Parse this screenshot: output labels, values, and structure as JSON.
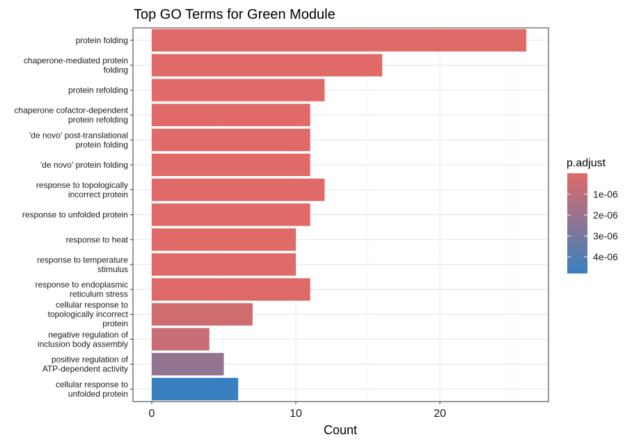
{
  "chart_data": {
    "type": "bar",
    "orientation": "horizontal",
    "title": "Top GO Terms for Green Module",
    "xlabel": "Count",
    "ylabel": "",
    "xlim": [
      0,
      27
    ],
    "x_ticks": [
      0,
      10,
      20
    ],
    "grid": true,
    "legend_position": "right",
    "categories": [
      "protein folding",
      "chaperone-mediated protein folding",
      "protein refolding",
      "chaperone cofactor-dependent protein refolding",
      "'de novo' post-translational protein folding",
      "'de novo' protein folding",
      "response to topologically incorrect protein",
      "response to unfolded protein",
      "response to heat",
      "response to temperature stimulus",
      "response to endoplasmic reticulum stress",
      "cellular response to topologically incorrect protein",
      "negative regulation of inclusion body assembly",
      "positive regulation of ATP-dependent activity",
      "cellular response to unfolded protein"
    ],
    "category_label_lines": [
      [
        "protein folding"
      ],
      [
        "chaperone-mediated protein",
        "folding"
      ],
      [
        "protein refolding"
      ],
      [
        "chaperone cofactor-dependent",
        "protein refolding"
      ],
      [
        "'de novo' post-translational",
        "protein folding"
      ],
      [
        "'de novo' protein folding"
      ],
      [
        "response to topologically",
        "incorrect protein"
      ],
      [
        "response to unfolded protein"
      ],
      [
        "response to heat"
      ],
      [
        "response to temperature",
        "stimulus"
      ],
      [
        "response to endoplasmic",
        "reticulum stress"
      ],
      [
        "cellular response to",
        "topologically incorrect",
        "protein"
      ],
      [
        "negative regulation of",
        "inclusion body assembly"
      ],
      [
        "positive regulation of",
        "ATP-dependent activity"
      ],
      [
        "cellular response to",
        "unfolded protein"
      ]
    ],
    "values": [
      26,
      16,
      12,
      11,
      11,
      11,
      12,
      11,
      10,
      10,
      11,
      7,
      4,
      5,
      6
    ],
    "p_adjust": [
      1e-10,
      5e-09,
      1e-08,
      2e-08,
      2e-08,
      2e-08,
      1e-08,
      2e-08,
      3e-08,
      3e-08,
      5e-08,
      5e-07,
      7e-07,
      2.2e-06,
      4.8e-06
    ],
    "color_legend": {
      "title": "p.adjust",
      "labels": [
        "1e-06",
        "2e-06",
        "3e-06",
        "4e-06"
      ],
      "values": [
        1e-06,
        2e-06,
        3e-06,
        4e-06
      ],
      "range": [
        0,
        4.8e-06
      ],
      "low_color": "#E06A67",
      "high_color": "#3880C0"
    }
  }
}
